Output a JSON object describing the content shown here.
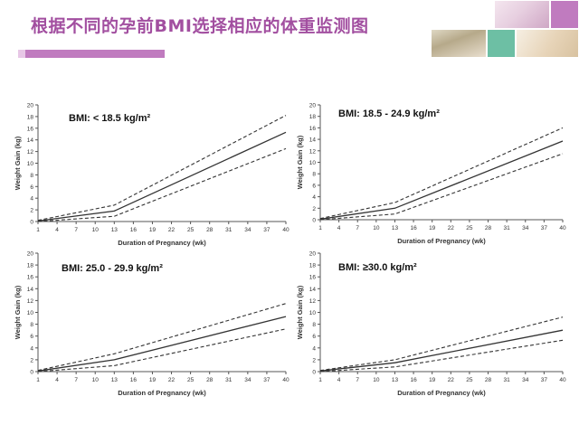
{
  "slide": {
    "title": "根据不同的孕前BMI选择相应的体重监测图"
  },
  "colors": {
    "title": "#a24fa0",
    "accent": "#c07bbf",
    "line": "#333333"
  },
  "chart_data": [
    {
      "type": "line",
      "title": "BMI: < 18.5 kg/m²",
      "xlabel": "Duration of Pregnancy (wk)",
      "ylabel": "Weight Gain (kg)",
      "x_ticks": [
        1,
        4,
        7,
        10,
        13,
        16,
        19,
        22,
        25,
        28,
        31,
        34,
        37,
        40
      ],
      "y_ticks": [
        0,
        2,
        4,
        6,
        8,
        10,
        12,
        14,
        16,
        18,
        20
      ],
      "xlim": [
        1,
        40
      ],
      "ylim": [
        0,
        20
      ],
      "series": [
        {
          "style": "dashed",
          "x": [
            1,
            13,
            40
          ],
          "y": [
            0.2,
            2.8,
            18.2
          ]
        },
        {
          "style": "solid",
          "x": [
            1,
            13,
            40
          ],
          "y": [
            0.1,
            1.8,
            15.3
          ]
        },
        {
          "style": "dashed",
          "x": [
            1,
            13,
            40
          ],
          "y": [
            0.0,
            0.9,
            12.5
          ]
        }
      ]
    },
    {
      "type": "line",
      "title": "BMI: 18.5 - 24.9 kg/m²",
      "xlabel": "Duration of Pregnancy (wk)",
      "ylabel": "Weight Gain (kg)",
      "x_ticks": [
        1,
        4,
        7,
        10,
        13,
        16,
        19,
        22,
        25,
        28,
        31,
        34,
        37,
        40
      ],
      "y_ticks": [
        0,
        2,
        4,
        6,
        8,
        10,
        12,
        14,
        16,
        18,
        20
      ],
      "xlim": [
        1,
        40
      ],
      "ylim": [
        0,
        20
      ],
      "series": [
        {
          "style": "dashed",
          "x": [
            1,
            13,
            40
          ],
          "y": [
            0.2,
            3.0,
            16.0
          ]
        },
        {
          "style": "solid",
          "x": [
            1,
            13,
            40
          ],
          "y": [
            0.1,
            2.0,
            13.7
          ]
        },
        {
          "style": "dashed",
          "x": [
            1,
            13,
            40
          ],
          "y": [
            0.0,
            1.0,
            11.5
          ]
        }
      ]
    },
    {
      "type": "line",
      "title": "BMI: 25.0 - 29.9 kg/m²",
      "xlabel": "Duration of Pregnancy (wk)",
      "ylabel": "Weight Gain (kg)",
      "x_ticks": [
        1,
        4,
        7,
        10,
        13,
        16,
        19,
        22,
        25,
        28,
        31,
        34,
        37,
        40
      ],
      "y_ticks": [
        0,
        2,
        4,
        6,
        8,
        10,
        12,
        14,
        16,
        18,
        20
      ],
      "xlim": [
        1,
        40
      ],
      "ylim": [
        0,
        20
      ],
      "series": [
        {
          "style": "dashed",
          "x": [
            1,
            13,
            40
          ],
          "y": [
            0.2,
            3.0,
            11.5
          ]
        },
        {
          "style": "solid",
          "x": [
            1,
            13,
            40
          ],
          "y": [
            0.1,
            2.0,
            9.3
          ]
        },
        {
          "style": "dashed",
          "x": [
            1,
            13,
            40
          ],
          "y": [
            0.0,
            1.0,
            7.2
          ]
        }
      ]
    },
    {
      "type": "line",
      "title": "BMI: ≥30.0 kg/m²",
      "xlabel": "Duration of Pregnancy (wk)",
      "ylabel": "Weight Gain (kg)",
      "x_ticks": [
        1,
        4,
        7,
        10,
        13,
        16,
        19,
        22,
        25,
        28,
        31,
        34,
        37,
        40
      ],
      "y_ticks": [
        0,
        2,
        4,
        6,
        8,
        10,
        12,
        14,
        16,
        18,
        20
      ],
      "xlim": [
        1,
        40
      ],
      "ylim": [
        0,
        20
      ],
      "series": [
        {
          "style": "dashed",
          "x": [
            1,
            13,
            40
          ],
          "y": [
            0.2,
            2.0,
            9.2
          ]
        },
        {
          "style": "solid",
          "x": [
            1,
            13,
            40
          ],
          "y": [
            0.1,
            1.5,
            7.0
          ]
        },
        {
          "style": "dashed",
          "x": [
            1,
            13,
            40
          ],
          "y": [
            0.0,
            0.8,
            5.3
          ]
        }
      ]
    }
  ]
}
